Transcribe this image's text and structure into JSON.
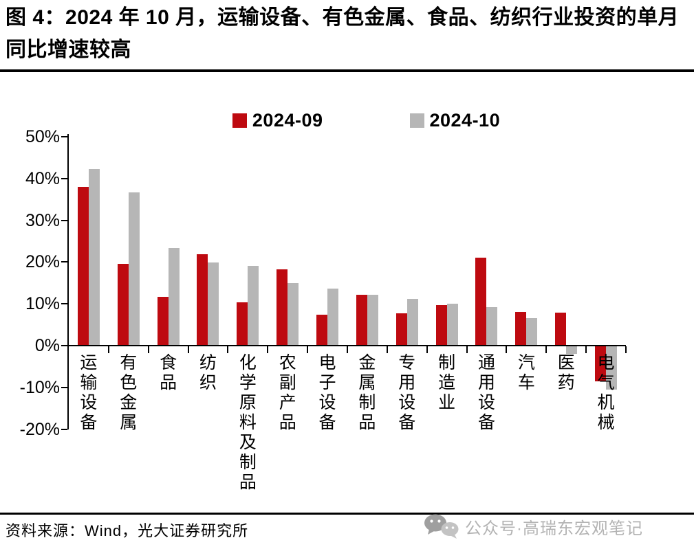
{
  "title": "图 4：2024 年 10 月，运输设备、有色金属、食品、纺织行业投资的单月同比增速较高",
  "footer": {
    "source": "资料来源：Wind，光大证券研究所",
    "watermark": "公众号·高瑞东宏观笔记",
    "watermark_icon": "wechat-icon",
    "watermark_color": "#b3b3b3"
  },
  "chart_data": {
    "type": "bar",
    "title": "",
    "xlabel": "",
    "ylabel": "",
    "unit": "%",
    "ylim": [
      -20,
      50
    ],
    "grid": false,
    "legend_position": "top-center",
    "y_ticks": [
      {
        "label": "50%",
        "value": 50
      },
      {
        "label": "40%",
        "value": 40
      },
      {
        "label": "30%",
        "value": 30
      },
      {
        "label": "20%",
        "value": 20
      },
      {
        "label": "10%",
        "value": 10
      },
      {
        "label": "0%",
        "value": 0
      },
      {
        "label": "-10%",
        "value": -10
      },
      {
        "label": "-20%",
        "value": -20
      }
    ],
    "categories": [
      "运输设备",
      "有色金属",
      "食品",
      "纺织",
      "化学原料及制品",
      "农副产品",
      "电子设备",
      "金属制品",
      "专用设备",
      "制造业",
      "通用设备",
      "汽车",
      "医药",
      "电气机械"
    ],
    "series": [
      {
        "name": "2024-09",
        "color": "#be0a10",
        "values": [
          38.0,
          19.6,
          11.6,
          21.9,
          10.4,
          18.3,
          7.4,
          12.2,
          7.8,
          9.7,
          21.0,
          8.0,
          7.9,
          -8.4
        ]
      },
      {
        "name": "2024-10",
        "color": "#b6b6b6",
        "values": [
          42.2,
          36.7,
          23.4,
          19.9,
          19.0,
          14.9,
          13.7,
          12.2,
          11.2,
          10.0,
          9.2,
          6.6,
          -1.8,
          -10.4
        ]
      }
    ]
  }
}
